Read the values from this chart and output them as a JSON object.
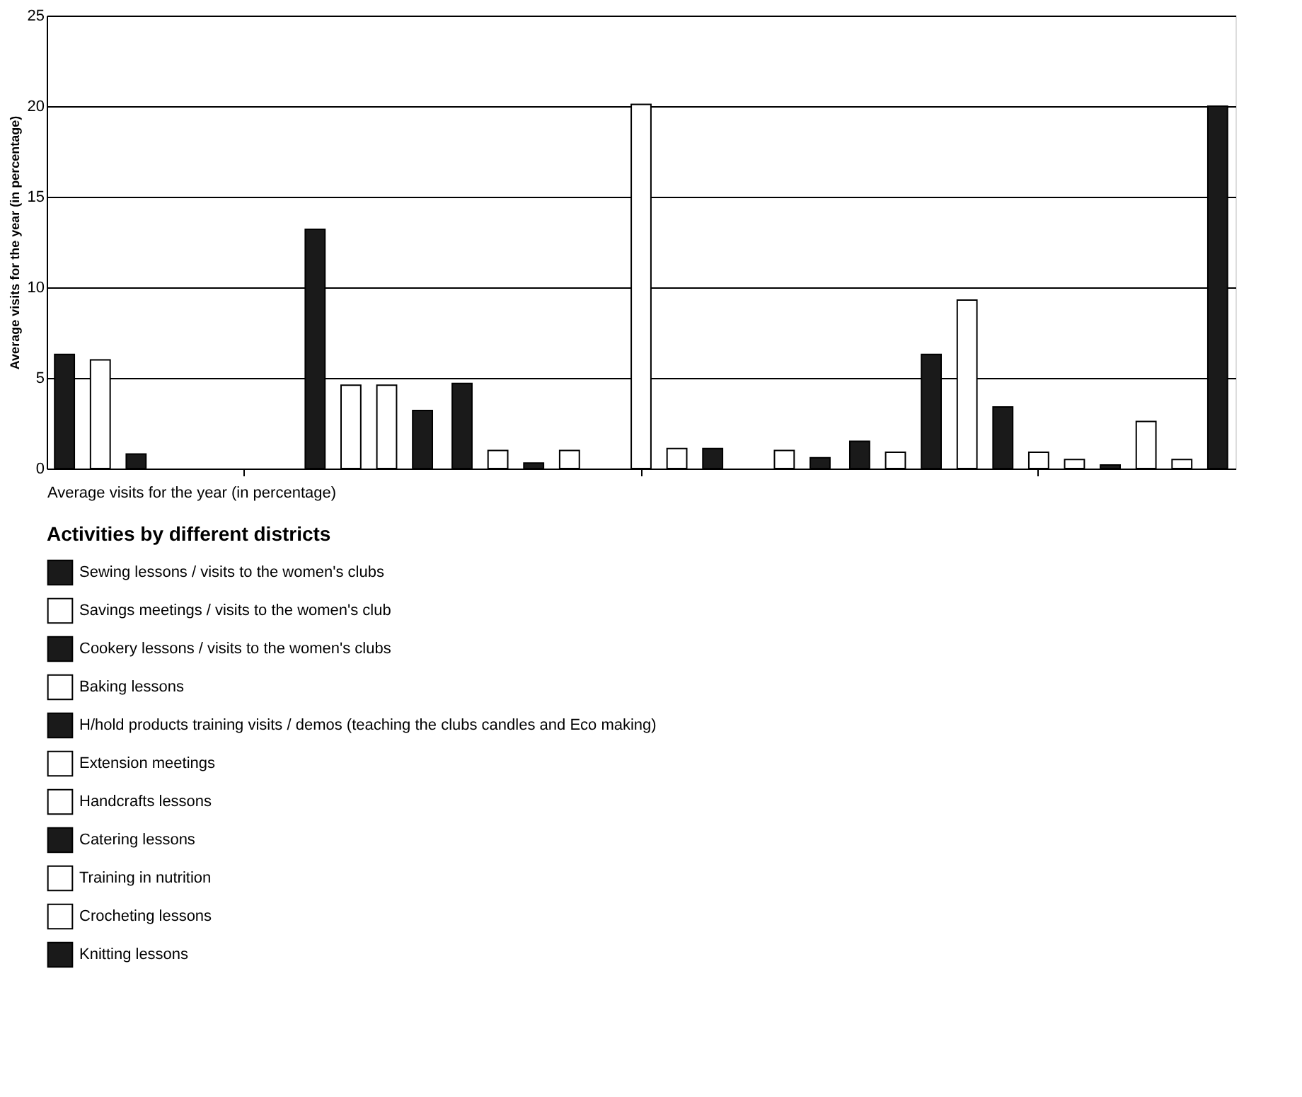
{
  "chart_data": {
    "type": "bar",
    "ylabel": "Average visits for the year (in percentage)",
    "xlabel": "Average visits for the year (in percentage)",
    "legend_title": "Activities by different districts",
    "categories": [
      null,
      null,
      null
    ],
    "series": [
      {
        "name": "Sewing lessons / visits to the women's clubs",
        "color": "#1a1a1a",
        "values": [
          6.3,
          4.7,
          1.5
        ]
      },
      {
        "name": "Savings meetings / visits to the women's club",
        "color": "#ffffff",
        "values": [
          6.0,
          1.0,
          0.9
        ]
      },
      {
        "name": "Cookery lessons / visits to the women's clubs",
        "color": "#1a1a1a",
        "values": [
          0.8,
          0.3,
          6.3
        ]
      },
      {
        "name": "Baking lessons",
        "color": "#ffffff",
        "values": [
          0,
          1.0,
          9.3
        ]
      },
      {
        "name": "H/hold products training visits / demos (teaching the clubs candles and Eco making)",
        "color": "#1a1a1a",
        "values": [
          0,
          0,
          3.4
        ]
      },
      {
        "name": "Extension meetings",
        "color": "#ffffff",
        "values": [
          0,
          20.1,
          0.9
        ]
      },
      {
        "name": "Handcrafts lessons",
        "color": "#ffffff",
        "values": [
          0,
          1.1,
          0.5
        ]
      },
      {
        "name": "Catering lessons",
        "color": "#1a1a1a",
        "values": [
          13.2,
          1.1,
          0.2
        ]
      },
      {
        "name": "Training in nutrition",
        "color": "#ffffff",
        "values": [
          4.6,
          0,
          2.6
        ]
      },
      {
        "name": "Crocheting lessons",
        "color": "#ffffff",
        "values": [
          4.6,
          1.0,
          0.5
        ]
      },
      {
        "name": "Knitting lessons",
        "color": "#1a1a1a",
        "values": [
          3.2,
          0.6,
          20.0
        ]
      }
    ],
    "ylim": [
      0,
      25
    ],
    "yticks": [
      0,
      5,
      10,
      15,
      20,
      25
    ],
    "grid": "y",
    "legend": "bottom"
  }
}
